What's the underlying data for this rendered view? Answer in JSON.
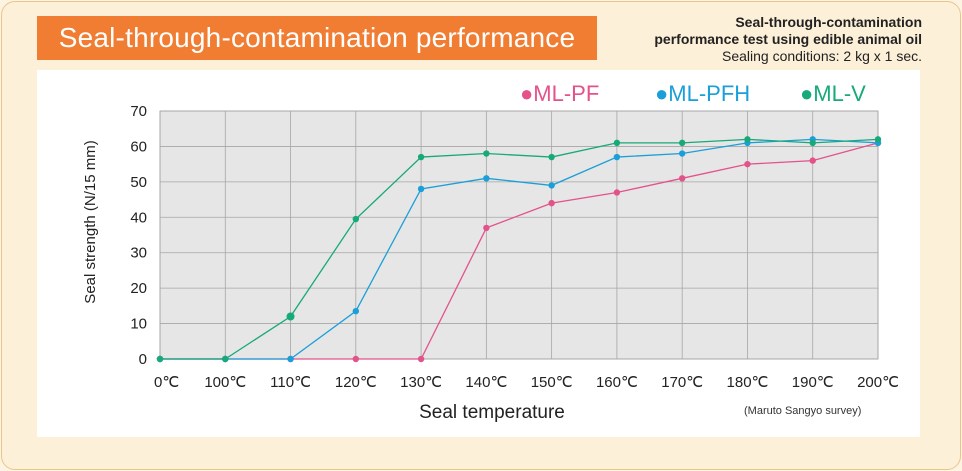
{
  "header": {
    "title": "Seal-through-contamination performance",
    "note_line1": "Seal-through-contamination",
    "note_line2": "performance test using edible animal oil",
    "note_line3": "Sealing conditions: 2 kg x 1 sec."
  },
  "footnote": "(Maruto Sangyo survey)",
  "colors": {
    "ML-PF": "#e4528b",
    "ML-PFH": "#1a9fd8",
    "ML-V": "#17a97a",
    "banner": "#f07d32",
    "plot_bg": "#e6e6e6"
  },
  "chart_data": {
    "type": "line",
    "title": "",
    "xlabel": "Seal temperature",
    "ylabel": "Seal strength (N/15 mm)",
    "x": [
      "0℃",
      "100℃",
      "110℃",
      "120℃",
      "130℃",
      "140℃",
      "150℃",
      "160℃",
      "170℃",
      "180℃",
      "190℃",
      "200℃"
    ],
    "ylim": [
      0,
      70
    ],
    "yticks": [
      0,
      10,
      20,
      30,
      40,
      50,
      60,
      70
    ],
    "grid": true,
    "legend_position": "top-right",
    "series": [
      {
        "name": "●ML-PF",
        "values": [
          0,
          0,
          0,
          0,
          0,
          37,
          44,
          47,
          51,
          55,
          56,
          61
        ]
      },
      {
        "name": "●ML-PFH",
        "values": [
          0,
          0,
          0,
          13.5,
          48,
          51,
          49,
          57,
          58,
          61,
          62,
          61
        ]
      },
      {
        "name": "●ML-V",
        "values": [
          0,
          0,
          12,
          39.5,
          57,
          58,
          57,
          61,
          61,
          62,
          61,
          62
        ]
      }
    ]
  }
}
